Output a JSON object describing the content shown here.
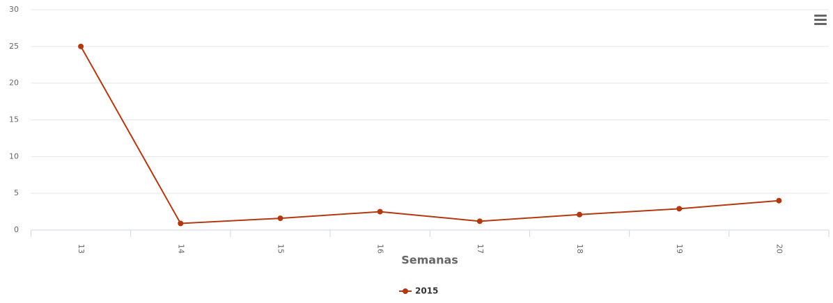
{
  "chart_data": {
    "type": "line",
    "x_label": "Semanas",
    "categories": [
      "13",
      "14",
      "15",
      "16",
      "17",
      "18",
      "19",
      "20"
    ],
    "series": [
      {
        "name": "2015",
        "color": "#b3380f",
        "values": [
          25,
          0.9,
          1.6,
          2.5,
          1.2,
          2.1,
          2.9,
          4.0
        ]
      }
    ],
    "ylim": [
      0,
      30
    ],
    "yticks": [
      0,
      5,
      10,
      15,
      20,
      25,
      30
    ],
    "grid": true,
    "legend": "bottom"
  }
}
